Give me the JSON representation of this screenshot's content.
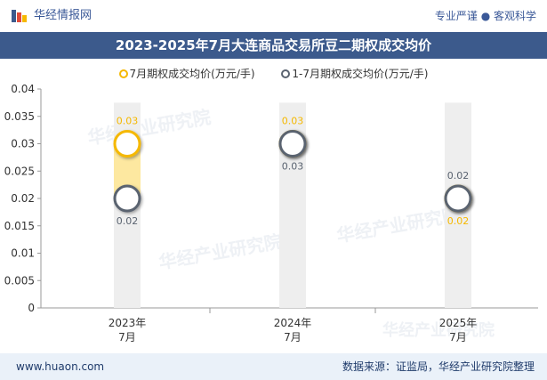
{
  "header": {
    "brand": "华经情报网",
    "tagline": "专业严谨 ● 客观科学"
  },
  "title": "2023-2025年7月大连商品交易所豆二期权成交均价",
  "footer": {
    "url": "www.huaon.com",
    "source": "数据来源：证监局，华经产业研究院整理"
  },
  "colors": {
    "series1": "#f5b800",
    "series2": "#5a6370",
    "titlebar": "#3c5a8c"
  },
  "chart_data": {
    "type": "dot-range",
    "title": "2023-2025年7月大连商品交易所豆二期权成交均价",
    "categories": [
      "2023年\n7月",
      "2024年\n7月",
      "2025年\n7月"
    ],
    "series": [
      {
        "name": "7月期权成交均价(万元/手)",
        "values": [
          0.03,
          0.03,
          0.02
        ],
        "labels": [
          "0.03",
          "0.03",
          "0.02"
        ]
      },
      {
        "name": "1-7月期权成交均价(万元/手)",
        "values": [
          0.02,
          0.03,
          0.02
        ],
        "labels": [
          "0.02",
          "0.03",
          "0.02"
        ]
      }
    ],
    "yticks": [
      "0",
      "0.005",
      "0.01",
      "0.015",
      "0.02",
      "0.025",
      "0.03",
      "0.035",
      "0.04"
    ],
    "ylim": [
      0,
      0.04
    ],
    "xlabel": "",
    "ylabel": "",
    "legend_position": "top"
  }
}
